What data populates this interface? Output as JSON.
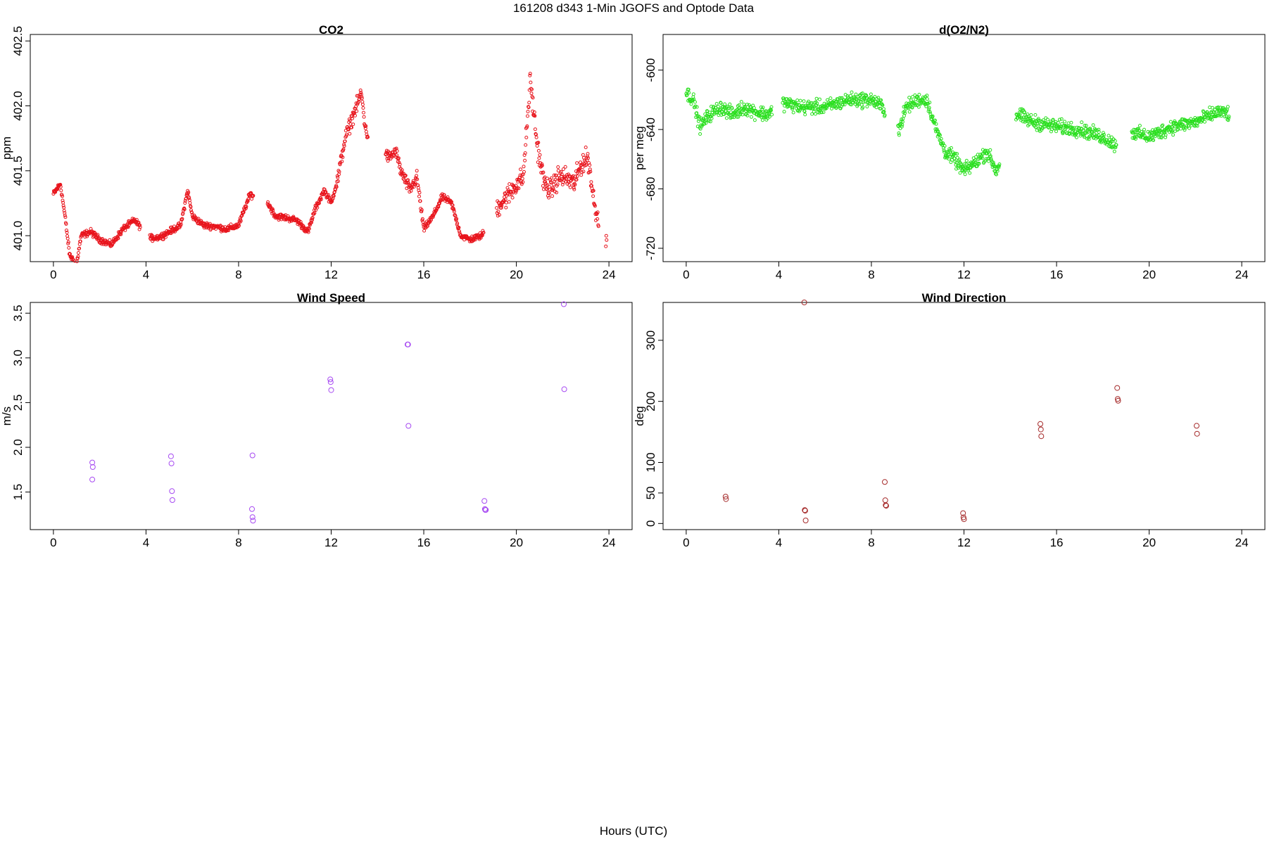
{
  "title": "161208   d343   1-Min  JGOFS and Optode Data",
  "xlabel": "Hours (UTC)",
  "chart_data": [
    {
      "type": "scatter",
      "title": "CO2",
      "ylabel": "ppm",
      "color": "#e8141c",
      "xlim": [
        -1,
        25
      ],
      "ylim": [
        400.8,
        402.55
      ],
      "xticks": [
        0,
        4,
        8,
        12,
        16,
        20,
        24
      ],
      "yticks": [
        401.0,
        401.5,
        402.0,
        402.5
      ],
      "ytick_labels": [
        "401.0",
        "401.5",
        "402.0",
        "402.5"
      ],
      "series": [
        {
          "profile": [
            [
              0.0,
              401.32
            ],
            [
              0.3,
              401.4
            ],
            [
              0.5,
              401.15
            ],
            [
              0.7,
              400.85
            ],
            [
              1.0,
              400.78
            ],
            [
              1.2,
              401.0
            ],
            [
              1.6,
              401.03
            ],
            [
              2.0,
              400.97
            ],
            [
              2.5,
              400.93
            ],
            [
              3.0,
              401.05
            ],
            [
              3.5,
              401.12
            ],
            [
              4.2,
              400.98
            ],
            [
              4.6,
              400.99
            ],
            [
              5.0,
              401.03
            ],
            [
              5.5,
              401.08
            ],
            [
              5.8,
              401.35
            ],
            [
              6.0,
              401.15
            ],
            [
              6.5,
              401.08
            ],
            [
              7.0,
              401.07
            ],
            [
              7.5,
              401.05
            ],
            [
              8.0,
              401.08
            ],
            [
              8.5,
              401.32
            ],
            [
              9.3,
              401.24
            ],
            [
              9.6,
              401.15
            ],
            [
              10.0,
              401.14
            ],
            [
              10.5,
              401.12
            ],
            [
              11.0,
              401.03
            ],
            [
              11.3,
              401.2
            ],
            [
              11.7,
              401.35
            ],
            [
              12.0,
              401.25
            ],
            [
              12.3,
              401.45
            ],
            [
              12.6,
              401.75
            ],
            [
              13.0,
              401.95
            ],
            [
              13.3,
              402.1
            ],
            [
              13.5,
              401.8
            ],
            [
              14.5,
              401.6
            ],
            [
              14.8,
              401.65
            ],
            [
              15.0,
              401.5
            ],
            [
              15.4,
              401.35
            ],
            [
              15.7,
              401.45
            ],
            [
              16.0,
              401.05
            ],
            [
              16.4,
              401.15
            ],
            [
              16.8,
              401.3
            ],
            [
              17.2,
              401.25
            ],
            [
              17.6,
              401.0
            ],
            [
              18.0,
              400.97
            ],
            [
              18.5,
              401.0
            ],
            [
              19.3,
              401.25
            ],
            [
              19.6,
              401.3
            ],
            [
              20.0,
              401.4
            ],
            [
              20.3,
              401.45
            ],
            [
              20.6,
              402.2
            ],
            [
              20.9,
              401.7
            ],
            [
              21.2,
              401.4
            ],
            [
              21.5,
              401.35
            ],
            [
              21.8,
              401.45
            ],
            [
              22.1,
              401.45
            ],
            [
              22.5,
              401.4
            ],
            [
              22.8,
              401.55
            ],
            [
              23.1,
              401.6
            ],
            [
              23.4,
              401.2
            ],
            [
              23.9,
              400.98
            ]
          ],
          "gaps": [
            [
              3.75,
              4.15
            ],
            [
              8.65,
              9.25
            ],
            [
              13.6,
              14.35
            ],
            [
              18.6,
              19.15
            ],
            [
              23.55,
              23.85
            ]
          ],
          "spread": 0.035,
          "spread_high": [
            [
              12.2,
              13.8,
              0.08
            ],
            [
              14.3,
              16.0,
              0.07
            ],
            [
              19.0,
              24.0,
              0.12
            ]
          ],
          "step_min": 1
        }
      ]
    },
    {
      "type": "scatter",
      "title": "d(O2/N2)",
      "ylabel": "per meg",
      "color": "#2adf1f",
      "xlim": [
        -1,
        25
      ],
      "ylim": [
        -729,
        -576
      ],
      "xticks": [
        0,
        4,
        8,
        12,
        16,
        20,
        24
      ],
      "yticks": [
        -720,
        -680,
        -640,
        -600
      ],
      "ytick_labels": [
        "-720",
        "-680",
        "-640",
        "-600"
      ],
      "series": [
        {
          "profile": [
            [
              0.0,
              -615
            ],
            [
              0.3,
              -620
            ],
            [
              0.6,
              -638
            ],
            [
              1.0,
              -630
            ],
            [
              1.5,
              -625
            ],
            [
              2.0,
              -630
            ],
            [
              2.5,
              -625
            ],
            [
              3.0,
              -628
            ],
            [
              3.5,
              -630
            ],
            [
              4.2,
              -622
            ],
            [
              5.0,
              -625
            ],
            [
              6.0,
              -625
            ],
            [
              7.0,
              -620
            ],
            [
              8.0,
              -620
            ],
            [
              8.5,
              -625
            ],
            [
              9.2,
              -640
            ],
            [
              9.5,
              -625
            ],
            [
              10.0,
              -620
            ],
            [
              10.4,
              -620
            ],
            [
              10.8,
              -640
            ],
            [
              11.2,
              -655
            ],
            [
              11.6,
              -660
            ],
            [
              12.0,
              -668
            ],
            [
              12.5,
              -662
            ],
            [
              13.0,
              -655
            ],
            [
              13.4,
              -668
            ],
            [
              14.3,
              -630
            ],
            [
              15.0,
              -635
            ],
            [
              16.0,
              -638
            ],
            [
              17.0,
              -640
            ],
            [
              18.0,
              -645
            ],
            [
              18.5,
              -650
            ],
            [
              19.3,
              -642
            ],
            [
              20.0,
              -645
            ],
            [
              21.0,
              -638
            ],
            [
              22.0,
              -635
            ],
            [
              23.0,
              -628
            ],
            [
              23.6,
              -630
            ]
          ],
          "gaps": [
            [
              3.7,
              4.15
            ],
            [
              8.6,
              9.15
            ],
            [
              13.55,
              14.25
            ],
            [
              18.6,
              19.25
            ],
            [
              23.45,
              23.8
            ]
          ],
          "spread": 7,
          "spread_high": [],
          "step_min": 1
        }
      ]
    },
    {
      "type": "scatter",
      "title": "Wind Speed",
      "ylabel": "m/s",
      "color": "#a74af2",
      "xlim": [
        -1,
        25
      ],
      "ylim": [
        1.08,
        3.62
      ],
      "xticks": [
        0,
        4,
        8,
        12,
        16,
        20,
        24
      ],
      "yticks": [
        1.5,
        2.0,
        2.5,
        3.0,
        3.5
      ],
      "ytick_labels": [
        "1.5",
        "2.0",
        "2.5",
        "3.0",
        "3.5"
      ],
      "series": [
        {
          "points": [
            [
              1.68,
              1.83
            ],
            [
              1.7,
              1.78
            ],
            [
              1.68,
              1.64
            ],
            [
              5.08,
              1.9
            ],
            [
              5.1,
              1.82
            ],
            [
              5.12,
              1.51
            ],
            [
              5.14,
              1.41
            ],
            [
              8.6,
              1.91
            ],
            [
              8.58,
              1.31
            ],
            [
              8.6,
              1.22
            ],
            [
              8.62,
              1.18
            ],
            [
              11.96,
              2.76
            ],
            [
              11.98,
              2.73
            ],
            [
              12.0,
              2.64
            ],
            [
              15.3,
              3.15
            ],
            [
              15.32,
              3.15
            ],
            [
              15.34,
              2.24
            ],
            [
              18.62,
              1.4
            ],
            [
              18.64,
              1.31
            ],
            [
              18.66,
              1.3
            ],
            [
              18.68,
              1.3
            ],
            [
              22.05,
              3.6
            ],
            [
              22.07,
              2.65
            ]
          ]
        }
      ]
    },
    {
      "type": "scatter",
      "title": "Wind Direction",
      "ylabel": "deg",
      "color": "#a52a2a",
      "xlim": [
        -1,
        25
      ],
      "ylim": [
        -10,
        362
      ],
      "xticks": [
        0,
        4,
        8,
        12,
        16,
        20,
        24
      ],
      "yticks": [
        0,
        50,
        100,
        200,
        300
      ],
      "ytick_labels": [
        "0",
        "50",
        "100",
        "200",
        "300"
      ],
      "series": [
        {
          "points": [
            [
              1.7,
              44
            ],
            [
              1.72,
              40
            ],
            [
              5.1,
              362
            ],
            [
              5.12,
              22
            ],
            [
              5.14,
              21
            ],
            [
              5.16,
              5
            ],
            [
              8.58,
              68
            ],
            [
              8.6,
              38
            ],
            [
              8.62,
              30
            ],
            [
              8.64,
              29
            ],
            [
              11.96,
              17
            ],
            [
              11.98,
              10
            ],
            [
              12.0,
              7
            ],
            [
              15.3,
              163
            ],
            [
              15.32,
              154
            ],
            [
              15.34,
              143
            ],
            [
              18.62,
              222
            ],
            [
              18.64,
              204
            ],
            [
              18.66,
              201
            ],
            [
              22.05,
              160
            ],
            [
              22.07,
              147
            ]
          ]
        }
      ]
    }
  ]
}
